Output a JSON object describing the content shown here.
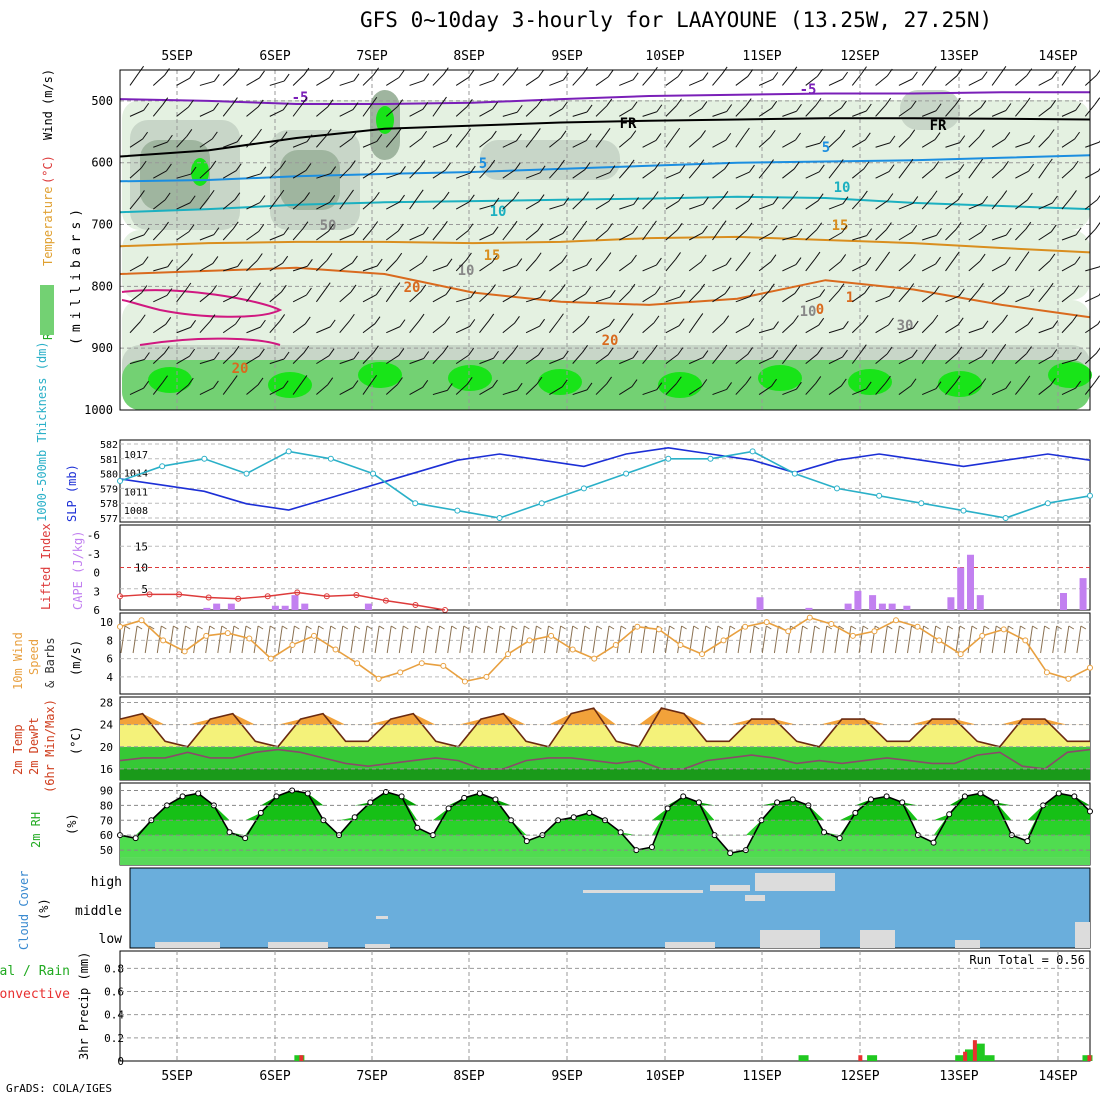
{
  "title": "GFS 0~10day 3-hourly for LAAYOUNE (13.25W, 27.25N)",
  "credit": "GrADS: COLA/IGES",
  "colors": {
    "rh_light": "#e4f1e1",
    "rh_mid": "#c8d6c8",
    "rh_grey": "#9fb59f",
    "rh_green": "#73d173",
    "rh_bright": "#18e418",
    "slp": "#1c2fd6",
    "thickness": "#2ab0c8",
    "cape": "#c280f0",
    "lifted_index": "#dd3b3b",
    "wind_speed": "#e8a040",
    "temp_fill": "#f4f27a",
    "temp_warm": "#f2a23a",
    "dew_fill": "#36c836",
    "rh2m_dark": "#00a000",
    "cloud_bg": "#6aaedc",
    "cloud_bar": "#dcdcdc",
    "precip_total": "#20c820",
    "precip_conv": "#e83030"
  },
  "chart_data": [
    {
      "panel": "upper_air",
      "type": "heatmap",
      "xlabels": [
        "5SEP",
        "6SEP",
        "7SEP",
        "8SEP",
        "9SEP",
        "10SEP",
        "11SEP",
        "12SEP",
        "13SEP",
        "14SEP"
      ],
      "ylabel_parts": [
        "RH (%)",
        "Temperature",
        "(°C)",
        "Wind",
        "(m/s)"
      ],
      "ylabel_unit": "(millibars)",
      "yticks": [
        500,
        600,
        700,
        800,
        900,
        1000
      ],
      "ylim": [
        450,
        1000
      ],
      "isotherms": [
        {
          "label": "-5",
          "levels": [
            497,
            500,
            505,
            505,
            503,
            497,
            492,
            490,
            488,
            488,
            486,
            486
          ]
        },
        {
          "label": "FR",
          "levels": [
            590,
            580,
            560,
            545,
            540,
            535,
            532,
            530,
            528,
            528,
            529,
            530
          ]
        },
        {
          "label": "5",
          "levels": [
            630,
            628,
            622,
            618,
            615,
            610,
            605,
            600,
            598,
            596,
            592,
            588
          ]
        },
        {
          "label": "10",
          "levels": [
            680,
            675,
            668,
            664,
            662,
            660,
            658,
            655,
            657,
            665,
            670,
            675
          ]
        },
        {
          "label": "15",
          "levels": [
            735,
            730,
            728,
            728,
            730,
            728,
            722,
            720,
            725,
            730,
            738,
            745
          ]
        },
        {
          "label": "20",
          "levels": [
            780,
            775,
            770,
            780,
            810,
            825,
            830,
            820,
            790,
            805,
            830,
            850
          ]
        }
      ],
      "contour_labels": [
        "-5",
        "FR",
        "5",
        "10",
        "15",
        "20",
        "20",
        "20",
        "-5",
        "FR",
        "5",
        "10",
        "15",
        "10",
        "0",
        "1",
        "30",
        "50"
      ]
    },
    {
      "panel": "slp_thickness",
      "type": "line",
      "ylabel_left": "1000-500mb Thickness (dm)",
      "ylabel_right": "SLP (mb)",
      "thickness_ticks": [
        577,
        578,
        579,
        580,
        581,
        582
      ],
      "slp_ticks": [
        1008,
        1011,
        1014,
        1017
      ],
      "series": [
        {
          "name": "SLP",
          "values": [
            1013,
            1012,
            1011,
            1009,
            1008,
            1010,
            1012,
            1014,
            1016,
            1017,
            1016,
            1015,
            1017,
            1018,
            1017,
            1016,
            1014,
            1016,
            1017,
            1016,
            1015,
            1016,
            1017,
            1016
          ]
        },
        {
          "name": "Thickness",
          "values": [
            579.5,
            580.5,
            581,
            580,
            581.5,
            581,
            580,
            578,
            577.5,
            577,
            578,
            579,
            580,
            581,
            581,
            581.5,
            580,
            579,
            578.5,
            578,
            577.5,
            577,
            578,
            578.5
          ]
        }
      ]
    },
    {
      "panel": "cape_li",
      "type": "bar",
      "ylabel_left": "Lifted Index",
      "ylabel_right": "CAPE (J/kg)",
      "li_ticks": [
        "-6",
        "-3",
        "0",
        "3",
        "6"
      ],
      "cape_ticks": [
        "15",
        "10",
        "5"
      ],
      "cape_bars": [
        {
          "t": 0.3,
          "v": 0.5
        },
        {
          "t": 0.4,
          "v": 1.5
        },
        {
          "t": 0.55,
          "v": 1.5
        },
        {
          "t": 1.0,
          "v": 1
        },
        {
          "t": 1.1,
          "v": 1
        },
        {
          "t": 1.2,
          "v": 3.5
        },
        {
          "t": 1.3,
          "v": 1.5
        },
        {
          "t": 1.95,
          "v": 1.5
        },
        {
          "t": 5.95,
          "v": 3
        },
        {
          "t": 6.45,
          "v": 0.5
        },
        {
          "t": 6.85,
          "v": 1.5
        },
        {
          "t": 6.95,
          "v": 4.5
        },
        {
          "t": 7.1,
          "v": 3.5
        },
        {
          "t": 7.2,
          "v": 1.5
        },
        {
          "t": 7.3,
          "v": 1.5
        },
        {
          "t": 7.45,
          "v": 1
        },
        {
          "t": 7.9,
          "v": 3
        },
        {
          "t": 8.0,
          "v": 10
        },
        {
          "t": 8.1,
          "v": 13
        },
        {
          "t": 8.2,
          "v": 3.5
        },
        {
          "t": 9.05,
          "v": 4
        },
        {
          "t": 9.25,
          "v": 7.5
        }
      ],
      "li_values": [
        3.8,
        3.5,
        3.5,
        4,
        4.2,
        3.8,
        3.2,
        3.8,
        3.6,
        4.5,
        5.2,
        6
      ]
    },
    {
      "panel": "wind10m",
      "type": "line",
      "ylabel_parts": [
        "10m Wind",
        "Speed",
        "& Barbs",
        "(m/s)"
      ],
      "yticks": [
        4,
        6,
        8,
        10
      ],
      "series": [
        {
          "name": "10m wind speed",
          "values": [
            9.5,
            10.2,
            8,
            6.8,
            8.5,
            8.8,
            8.2,
            6,
            7.5,
            8.5,
            7,
            5.5,
            3.8,
            4.5,
            5.5,
            5.2,
            3.5,
            4,
            6.5,
            8,
            8.5,
            7,
            6,
            7.5,
            9.5,
            9.2,
            7.5,
            6.5,
            8,
            9.5,
            10,
            9,
            10.5,
            9.8,
            8.5,
            9,
            10.2,
            9.5,
            8,
            6.5,
            8.5,
            9.2,
            8,
            4.5,
            3.8,
            5
          ]
        }
      ]
    },
    {
      "panel": "temp2m",
      "type": "area",
      "ylabel_parts": [
        "2m Temp",
        "2m DewPt",
        "(6hr Min/Max)",
        "(°C)"
      ],
      "yticks": [
        16,
        20,
        24,
        28
      ],
      "series": [
        {
          "name": "2m Temp",
          "values": [
            25,
            26,
            21,
            20,
            25,
            26,
            21,
            20,
            25,
            26,
            21,
            21,
            25,
            26,
            21,
            20,
            25,
            26,
            21,
            20,
            26,
            27,
            21,
            20,
            27,
            26,
            21,
            21,
            25,
            25,
            21,
            20,
            25,
            25,
            21,
            21,
            25,
            25,
            21,
            20,
            25,
            25,
            21,
            21
          ]
        },
        {
          "name": "2m DewPt",
          "values": [
            17.5,
            18,
            18,
            19,
            18,
            18,
            19,
            19.5,
            19,
            18,
            17,
            16.5,
            17,
            17.5,
            18,
            17.5,
            16,
            16,
            17.5,
            18,
            18,
            17.5,
            17,
            17.5,
            16,
            16,
            17.5,
            18,
            18.5,
            18,
            17,
            17.5,
            17,
            17.5,
            18,
            17.5,
            17,
            17,
            18.5,
            19,
            16.5,
            16,
            19,
            19.5
          ]
        }
      ]
    },
    {
      "panel": "rh2m",
      "type": "area",
      "ylabel_parts": [
        "2m RH",
        "(%)"
      ],
      "yticks": [
        50,
        60,
        70,
        80,
        90
      ],
      "series": [
        {
          "name": "2m RH",
          "values": [
            60,
            58,
            70,
            80,
            86,
            88,
            80,
            62,
            58,
            75,
            86,
            90,
            88,
            70,
            60,
            72,
            82,
            89,
            86,
            65,
            60,
            78,
            85,
            88,
            84,
            70,
            56,
            60,
            70,
            72,
            75,
            70,
            62,
            50,
            52,
            78,
            86,
            82,
            60,
            48,
            50,
            70,
            82,
            84,
            80,
            62,
            58,
            75,
            84,
            86,
            82,
            60,
            55,
            74,
            86,
            88,
            82,
            60,
            56,
            80,
            88,
            86,
            76
          ]
        }
      ]
    },
    {
      "panel": "cloud_cover",
      "type": "bar",
      "ylabel_parts": [
        "Cloud Cover",
        "(%)"
      ],
      "levels": [
        "high",
        "middle",
        "low"
      ]
    },
    {
      "panel": "precip3hr",
      "type": "bar",
      "ylabel_left_parts": [
        "Total / Rain",
        "Convective"
      ],
      "ylabel_right": "3hr Precip (mm)",
      "yticks": [
        "0.8",
        "0.6",
        "0.4",
        "0.2",
        "0"
      ],
      "yvals": [
        0.8,
        0.6,
        0.4,
        0.2,
        0
      ],
      "run_total_text": "Run Total = 0.56",
      "total_bars": [
        {
          "t": 1.25,
          "v": 0.05
        },
        {
          "t": 6.4,
          "v": 0.05
        },
        {
          "t": 7.1,
          "v": 0.05
        },
        {
          "t": 8.0,
          "v": 0.05
        },
        {
          "t": 8.1,
          "v": 0.1
        },
        {
          "t": 8.2,
          "v": 0.15
        },
        {
          "t": 8.3,
          "v": 0.05
        },
        {
          "t": 9.3,
          "v": 0.05
        }
      ],
      "conv_bars": [
        {
          "t": 1.27,
          "v": 0.05
        },
        {
          "t": 6.98,
          "v": 0.05
        },
        {
          "t": 8.05,
          "v": 0.08
        },
        {
          "t": 8.15,
          "v": 0.18
        },
        {
          "t": 9.32,
          "v": 0.05
        }
      ]
    }
  ]
}
